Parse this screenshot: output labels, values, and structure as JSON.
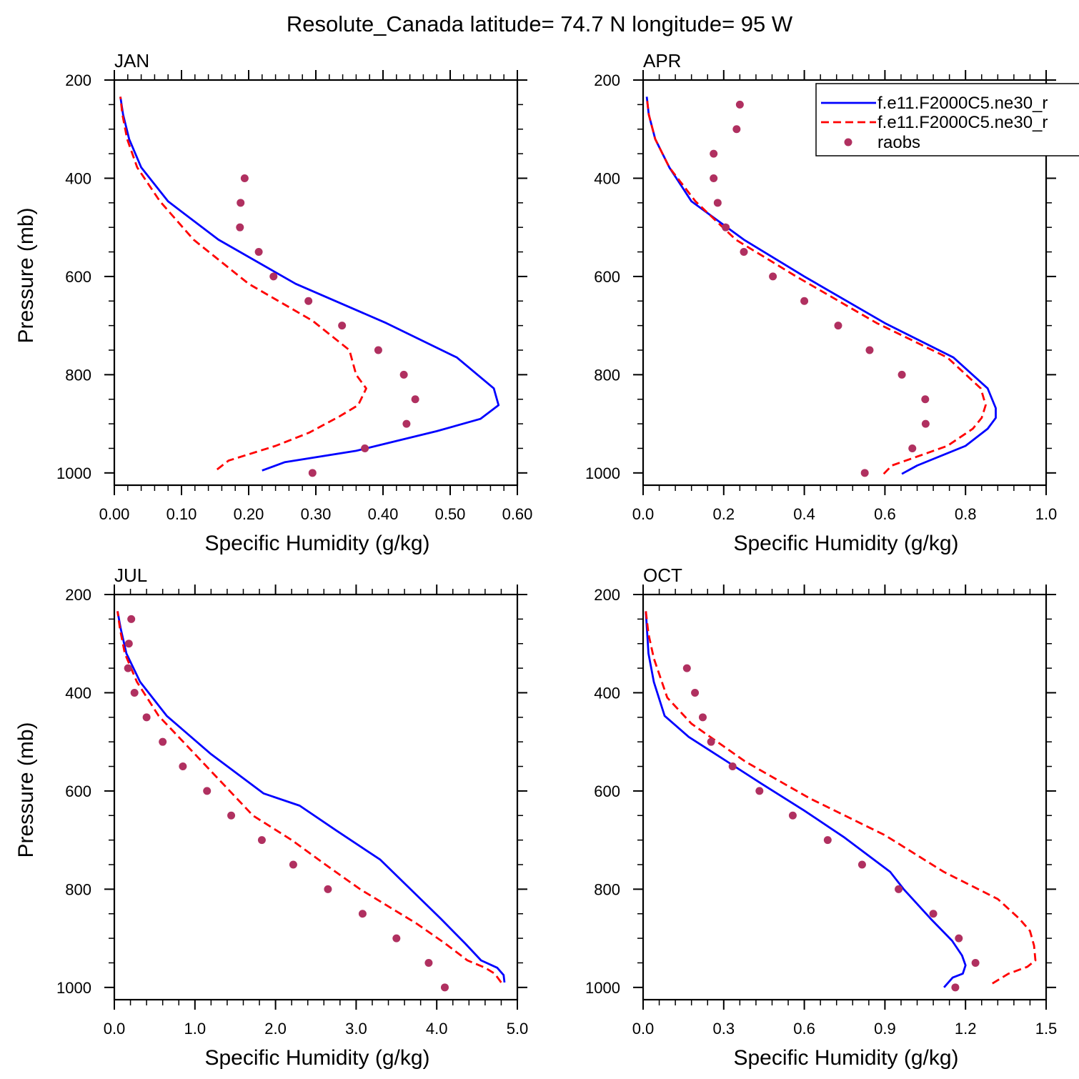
{
  "figure": {
    "title": "Resolute_Canada  latitude= 74.7 N longitude= 95 W"
  },
  "legend": {
    "location": "top-right of APR panel",
    "entries": [
      {
        "label": "f.e11.F2000C5.ne30_r",
        "style": "solid",
        "color": "#0000ff"
      },
      {
        "label": "f.e11.F2000C5.ne30_r",
        "style": "dashed",
        "color": "#ff0000"
      },
      {
        "label": "raobs",
        "style": "dots",
        "color": "#b03060"
      }
    ]
  },
  "chart_data": [
    {
      "type": "line",
      "title": "JAN",
      "xlabel": "Specific Humidity (g/kg)",
      "ylabel": "Pressure (mb)",
      "xlim": [
        0,
        0.6
      ],
      "ylim": [
        200,
        1025
      ],
      "y_inverted": true,
      "xticks": [
        0,
        0.1,
        0.2,
        0.3,
        0.4,
        0.5,
        0.6
      ],
      "xtick_labels": [
        "0.00",
        "0.10",
        "0.20",
        "0.30",
        "0.40",
        "0.50",
        "0.60"
      ],
      "yticks": [
        200,
        400,
        600,
        800,
        1000
      ],
      "ytick_labels": [
        "200",
        "400",
        "600",
        "800",
        "1000"
      ],
      "series": [
        {
          "name": "f.e11.F2000C5.ne30_r solid",
          "style": "solid",
          "color": "#0000ff",
          "x": [
            0.22,
            0.254,
            0.36,
            0.42,
            0.48,
            0.545,
            0.572,
            0.565,
            0.51,
            0.405,
            0.27,
            0.155,
            0.08,
            0.04,
            0.022,
            0.013,
            0.009
          ],
          "y": [
            995,
            978,
            955,
            935,
            915,
            890,
            862,
            828,
            765,
            695,
            615,
            525,
            447,
            378,
            320,
            270,
            234
          ]
        },
        {
          "name": "f.e11.F2000C5.ne30_r dashed",
          "style": "dashed",
          "color": "#ff0000",
          "x": [
            0.153,
            0.17,
            0.24,
            0.29,
            0.335,
            0.363,
            0.375,
            0.36,
            0.35,
            0.295,
            0.2,
            0.118,
            0.068,
            0.034,
            0.019,
            0.012,
            0.009
          ],
          "y": [
            993,
            975,
            945,
            918,
            885,
            862,
            828,
            800,
            750,
            690,
            615,
            525,
            447,
            378,
            320,
            270,
            234
          ]
        },
        {
          "name": "raobs",
          "style": "dots",
          "color": "#b03060",
          "x": [
            0.295,
            0.373,
            0.435,
            0.448,
            0.431,
            0.393,
            0.339,
            0.289,
            0.237,
            0.215,
            0.187,
            0.188,
            0.194
          ],
          "y": [
            1000,
            950,
            900,
            850,
            800,
            750,
            700,
            650,
            600,
            550,
            500,
            450,
            400
          ]
        }
      ]
    },
    {
      "type": "line",
      "title": "APR",
      "xlabel": "Specific Humidity (g/kg)",
      "ylabel": "",
      "xlim": [
        0,
        1.0
      ],
      "ylim": [
        200,
        1025
      ],
      "y_inverted": true,
      "xticks": [
        0,
        0.2,
        0.4,
        0.6,
        0.8,
        1.0
      ],
      "xtick_labels": [
        "0.0",
        "0.2",
        "0.4",
        "0.6",
        "0.8",
        "1.0"
      ],
      "yticks": [
        200,
        400,
        600,
        800,
        1000
      ],
      "ytick_labels": [
        "200",
        "400",
        "600",
        "800",
        "1000"
      ],
      "series": [
        {
          "name": "f.e11.F2000C5.ne30_r solid",
          "style": "solid",
          "color": "#0000ff",
          "x": [
            0.642,
            0.68,
            0.8,
            0.855,
            0.875,
            0.875,
            0.855,
            0.77,
            0.6,
            0.4,
            0.25,
            0.12,
            0.065,
            0.03,
            0.014,
            0.009
          ],
          "y": [
            1002,
            985,
            945,
            910,
            888,
            868,
            828,
            765,
            695,
            600,
            525,
            447,
            378,
            320,
            270,
            234
          ]
        },
        {
          "name": "f.e11.F2000C5.ne30_r dashed",
          "style": "dashed",
          "color": "#ff0000",
          "x": [
            0.597,
            0.617,
            0.755,
            0.818,
            0.84,
            0.85,
            0.838,
            0.755,
            0.58,
            0.38,
            0.23,
            0.13,
            0.065,
            0.03,
            0.014,
            0.009
          ],
          "y": [
            1002,
            985,
            945,
            910,
            888,
            862,
            828,
            765,
            695,
            600,
            525,
            447,
            378,
            320,
            270,
            234
          ]
        },
        {
          "name": "raobs",
          "style": "dots",
          "color": "#b03060",
          "x": [
            0.55,
            0.668,
            0.701,
            0.7,
            0.642,
            0.562,
            0.484,
            0.4,
            0.322,
            0.25,
            0.205,
            0.185,
            0.175,
            0.175,
            0.232,
            0.24
          ],
          "y": [
            1000,
            950,
            900,
            850,
            800,
            750,
            700,
            650,
            600,
            550,
            500,
            450,
            400,
            350,
            300,
            250
          ]
        }
      ]
    },
    {
      "type": "line",
      "title": "JUL",
      "xlabel": "Specific Humidity (g/kg)",
      "ylabel": "Pressure (mb)",
      "xlim": [
        0,
        5.0
      ],
      "ylim": [
        200,
        1025
      ],
      "y_inverted": true,
      "xticks": [
        0,
        1,
        2,
        3,
        4,
        5
      ],
      "xtick_labels": [
        "0.0",
        "1.0",
        "2.0",
        "3.0",
        "4.0",
        "5.0"
      ],
      "yticks": [
        200,
        400,
        600,
        800,
        1000
      ],
      "ytick_labels": [
        "200",
        "400",
        "600",
        "800",
        "1000"
      ],
      "series": [
        {
          "name": "f.e11.F2000C5.ne30_r solid",
          "style": "solid",
          "color": "#0000ff",
          "x": [
            4.84,
            4.83,
            4.75,
            4.55,
            4.35,
            4.05,
            3.8,
            3.3,
            2.75,
            2.3,
            1.85,
            1.2,
            0.65,
            0.32,
            0.15,
            0.08,
            0.04
          ],
          "y": [
            990,
            975,
            960,
            945,
            910,
            860,
            820,
            740,
            680,
            630,
            605,
            525,
            447,
            378,
            320,
            270,
            234
          ]
        },
        {
          "name": "f.e11.F2000C5.ne30_r dashed",
          "style": "dashed",
          "color": "#ff0000",
          "x": [
            4.8,
            4.72,
            4.6,
            4.38,
            4.1,
            3.75,
            3.45,
            3.05,
            2.62,
            2.2,
            1.72,
            1.0,
            0.55,
            0.28,
            0.13,
            0.07,
            0.04
          ],
          "y": [
            990,
            972,
            960,
            945,
            910,
            870,
            840,
            800,
            750,
            700,
            650,
            525,
            447,
            378,
            320,
            270,
            234
          ]
        },
        {
          "name": "raobs",
          "style": "dots",
          "color": "#b03060",
          "x": [
            4.1,
            3.9,
            3.5,
            3.08,
            2.65,
            2.22,
            1.83,
            1.45,
            1.15,
            0.85,
            0.6,
            0.4,
            0.25,
            0.17,
            0.18,
            0.21
          ],
          "y": [
            1000,
            950,
            900,
            850,
            800,
            750,
            700,
            650,
            600,
            550,
            500,
            450,
            400,
            350,
            300,
            250
          ]
        }
      ]
    },
    {
      "type": "line",
      "title": "OCT",
      "xlabel": "Specific Humidity (g/kg)",
      "ylabel": "",
      "xlim": [
        0,
        1.5
      ],
      "ylim": [
        200,
        1025
      ],
      "y_inverted": true,
      "xticks": [
        0,
        0.3,
        0.6,
        0.9,
        1.2,
        1.5
      ],
      "xtick_labels": [
        "0.0",
        "0.3",
        "0.6",
        "0.9",
        "1.2",
        "1.5"
      ],
      "yticks": [
        200,
        400,
        600,
        800,
        1000
      ],
      "ytick_labels": [
        "200",
        "400",
        "600",
        "800",
        "1000"
      ],
      "series": [
        {
          "name": "f.e11.F2000C5.ne30_r solid",
          "style": "solid",
          "color": "#0000ff",
          "x": [
            1.12,
            1.152,
            1.19,
            1.2,
            1.187,
            1.15,
            1.07,
            0.97,
            0.92,
            0.75,
            0.6,
            0.44,
            0.27,
            0.17,
            0.08,
            0.04,
            0.02,
            0.01
          ],
          "y": [
            1000,
            980,
            972,
            955,
            935,
            905,
            860,
            800,
            765,
            695,
            640,
            585,
            525,
            490,
            447,
            378,
            320,
            234
          ]
        },
        {
          "name": "f.e11.F2000C5.ne30_r dashed",
          "style": "dashed",
          "color": "#ff0000",
          "x": [
            1.3,
            1.36,
            1.43,
            1.46,
            1.455,
            1.44,
            1.4,
            1.32,
            1.12,
            0.9,
            0.62,
            0.38,
            0.18,
            0.09,
            0.04,
            0.02,
            0.01
          ],
          "y": [
            992,
            972,
            958,
            945,
            915,
            885,
            860,
            820,
            765,
            690,
            615,
            540,
            463,
            410,
            330,
            280,
            234
          ]
        },
        {
          "name": "raobs",
          "style": "dots",
          "color": "#b03060",
          "x": [
            1.162,
            1.237,
            1.175,
            1.08,
            0.951,
            0.815,
            0.687,
            0.557,
            0.433,
            0.333,
            0.253,
            0.222,
            0.193,
            0.163
          ],
          "y": [
            1000,
            950,
            900,
            850,
            800,
            750,
            700,
            650,
            600,
            550,
            500,
            450,
            400,
            350
          ]
        }
      ]
    }
  ]
}
